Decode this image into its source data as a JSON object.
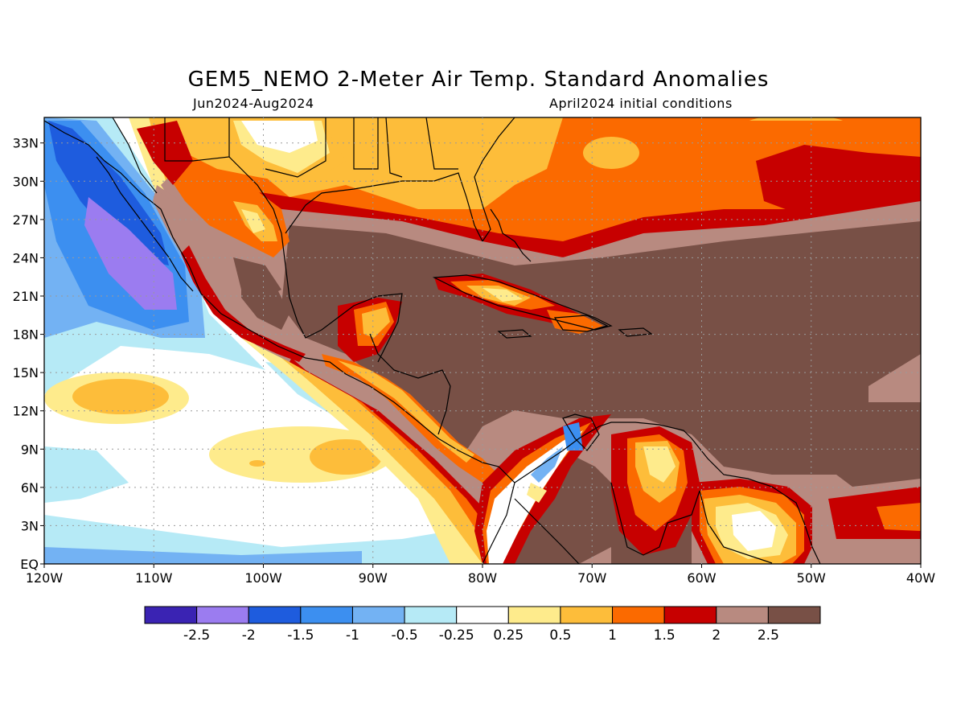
{
  "title": "GEM5_NEMO 2-Meter Air Temp. Standard Anomalies",
  "subtitle_left": "Jun2024-Aug2024",
  "subtitle_right": "April2024 initial conditions",
  "map": {
    "lat_labels": [
      "33N",
      "30N",
      "27N",
      "24N",
      "21N",
      "18N",
      "15N",
      "12N",
      "9N",
      "6N",
      "3N",
      "EQ"
    ],
    "lon_labels": [
      "120W",
      "110W",
      "100W",
      "90W",
      "80W",
      "70W",
      "60W",
      "50W",
      "40W"
    ],
    "lon_range": [
      -120,
      -40
    ],
    "lat_range": [
      0,
      35
    ],
    "grid": "dotted"
  },
  "colorbar": {
    "colors": [
      "#3a23b3",
      "#9b7cf0",
      "#1e5cde",
      "#3c8ff0",
      "#73b2f3",
      "#b6eaf6",
      "#ffffff",
      "#feeb8c",
      "#fdbd3a",
      "#fb6a00",
      "#c70000",
      "#b88a80",
      "#785046"
    ],
    "labels": [
      "-2.5",
      "-2",
      "-1.5",
      "-1",
      "-0.5",
      "-0.25",
      "0.25",
      "0.5",
      "1",
      "1.5",
      "2",
      "2.5"
    ]
  }
}
